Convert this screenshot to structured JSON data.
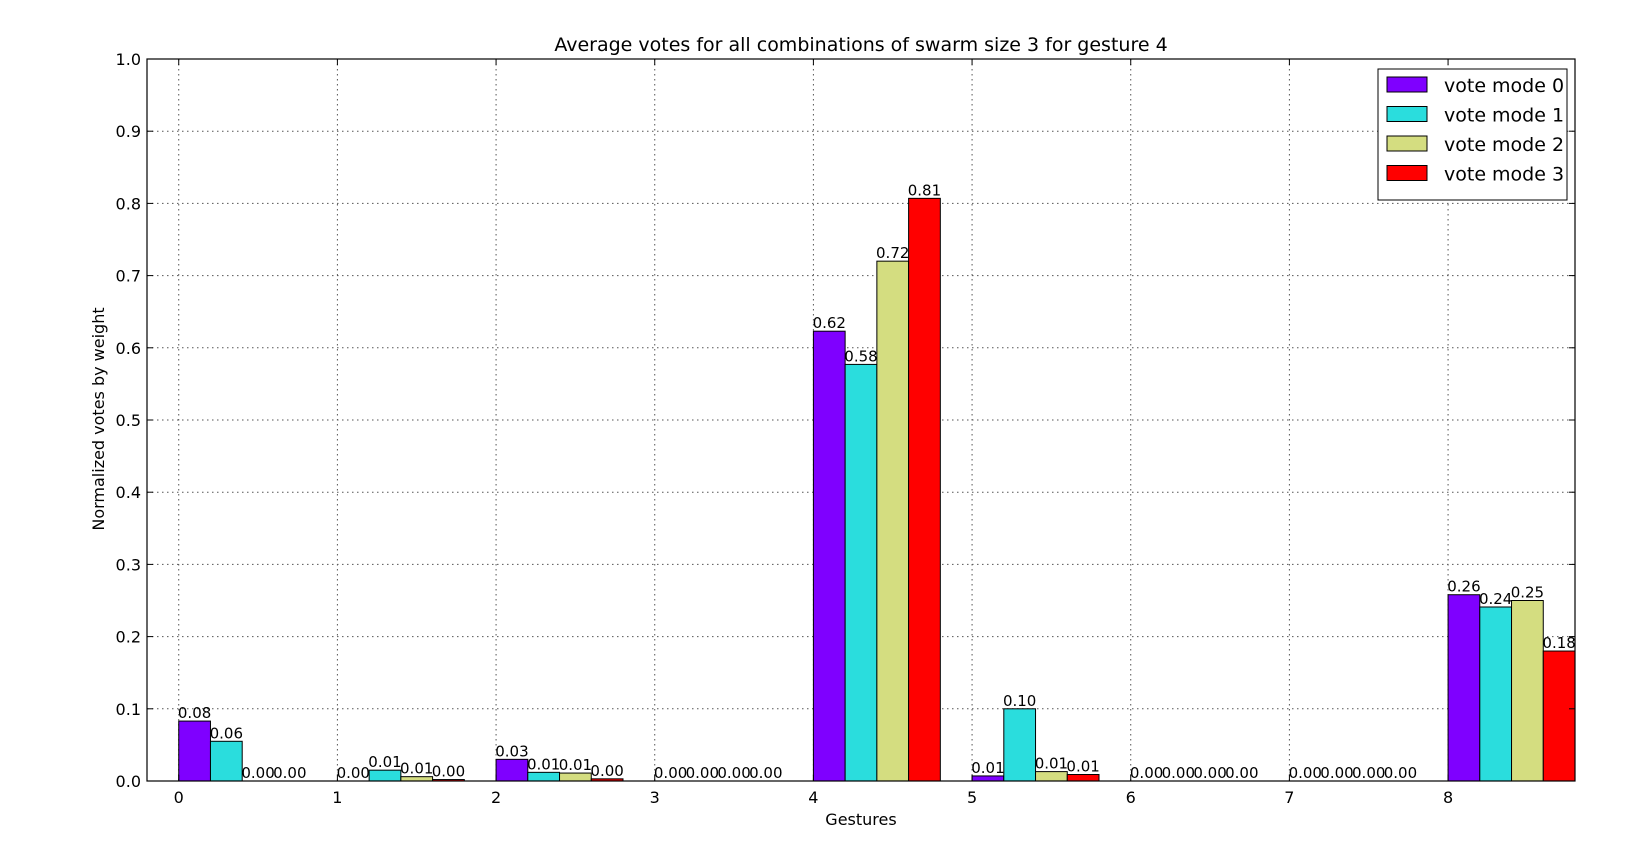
{
  "chart_data": {
    "type": "bar",
    "title": "Average votes for all combinations of swarm size 3 for gesture 4",
    "xlabel": "Gestures",
    "ylabel": "Normalized votes by weight",
    "ylim": [
      0,
      1.0
    ],
    "xlim": [
      -0.2,
      8.8
    ],
    "yticks": [
      "0.0",
      "0.1",
      "0.2",
      "0.3",
      "0.4",
      "0.5",
      "0.6",
      "0.7",
      "0.8",
      "0.9",
      "1.0"
    ],
    "categories": [
      "0",
      "1",
      "2",
      "3",
      "4",
      "5",
      "6",
      "7",
      "8"
    ],
    "grid": true,
    "legend_position": "top-right",
    "series": [
      {
        "name": "vote mode 0",
        "color": "#7f00ff",
        "values": [
          0.083,
          0.0,
          0.03,
          0.0,
          0.623,
          0.007,
          0.0,
          0.0,
          0.258
        ],
        "labels": [
          "0.08",
          "0.00",
          "0.03",
          "0.00",
          "0.62",
          "0.01",
          "0.00",
          "0.00",
          "0.26"
        ]
      },
      {
        "name": "vote mode 1",
        "color": "#2adddd",
        "values": [
          0.055,
          0.015,
          0.012,
          0.0,
          0.577,
          0.1,
          0.0,
          0.0,
          0.241
        ],
        "labels": [
          "0.06",
          "0.01",
          "0.01",
          "0.00",
          "0.58",
          "0.10",
          "0.00",
          "0.00",
          "0.24"
        ]
      },
      {
        "name": "vote mode 2",
        "color": "#d4dd80",
        "values": [
          0.0,
          0.006,
          0.011,
          0.0,
          0.72,
          0.013,
          0.0,
          0.0,
          0.25
        ],
        "labels": [
          "0.00",
          "0.01",
          "0.01",
          "0.00",
          "0.72",
          "0.01",
          "0.00",
          "0.00",
          "0.25"
        ]
      },
      {
        "name": "vote mode 3",
        "color": "#ff0000",
        "values": [
          0.0,
          0.002,
          0.003,
          0.0,
          0.807,
          0.009,
          0.0,
          0.0,
          0.18
        ],
        "labels": [
          "0.00",
          "0.00",
          "0.00",
          "0.00",
          "0.81",
          "0.01",
          "0.00",
          "0.00",
          "0.18"
        ]
      }
    ]
  }
}
